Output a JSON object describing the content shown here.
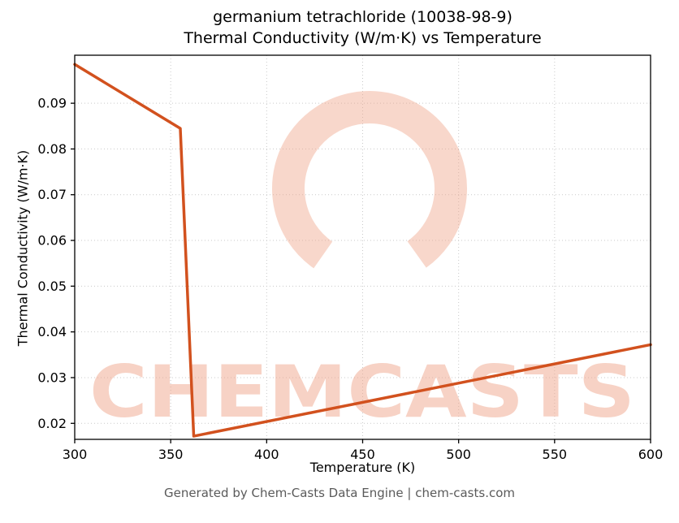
{
  "title": {
    "line1": "germanium tetrachloride (10038-98-9)",
    "line2": "Thermal Conductivity (W/m·K) vs Temperature"
  },
  "footer": "Generated by Chem-Casts Data Engine | chem-casts.com",
  "watermark": {
    "text": "CHEMCASTS",
    "color": "#f0a68c"
  },
  "colors": {
    "line": "#d2511e",
    "grid": "#c9c9c9",
    "spine": "#000000",
    "tick_label": "#000000"
  },
  "chart_data": {
    "type": "line",
    "title": "germanium tetrachloride (10038-98-9)\nThermal Conductivity (W/m·K) vs Temperature",
    "xlabel": "Temperature (K)",
    "ylabel": "Thermal Conductivity (W/m·K)",
    "xlim": [
      300,
      600
    ],
    "ylim": [
      0.0165,
      0.1005
    ],
    "x_ticks": [
      300,
      350,
      400,
      450,
      500,
      550,
      600
    ],
    "y_ticks": [
      0.02,
      0.03,
      0.04,
      0.05,
      0.06,
      0.07,
      0.08,
      0.09
    ],
    "grid": true,
    "legend": false,
    "series": [
      {
        "name": "Thermal Conductivity",
        "x": [
          300,
          355,
          362,
          600
        ],
        "y": [
          0.0985,
          0.0845,
          0.0172,
          0.0372
        ]
      }
    ]
  }
}
